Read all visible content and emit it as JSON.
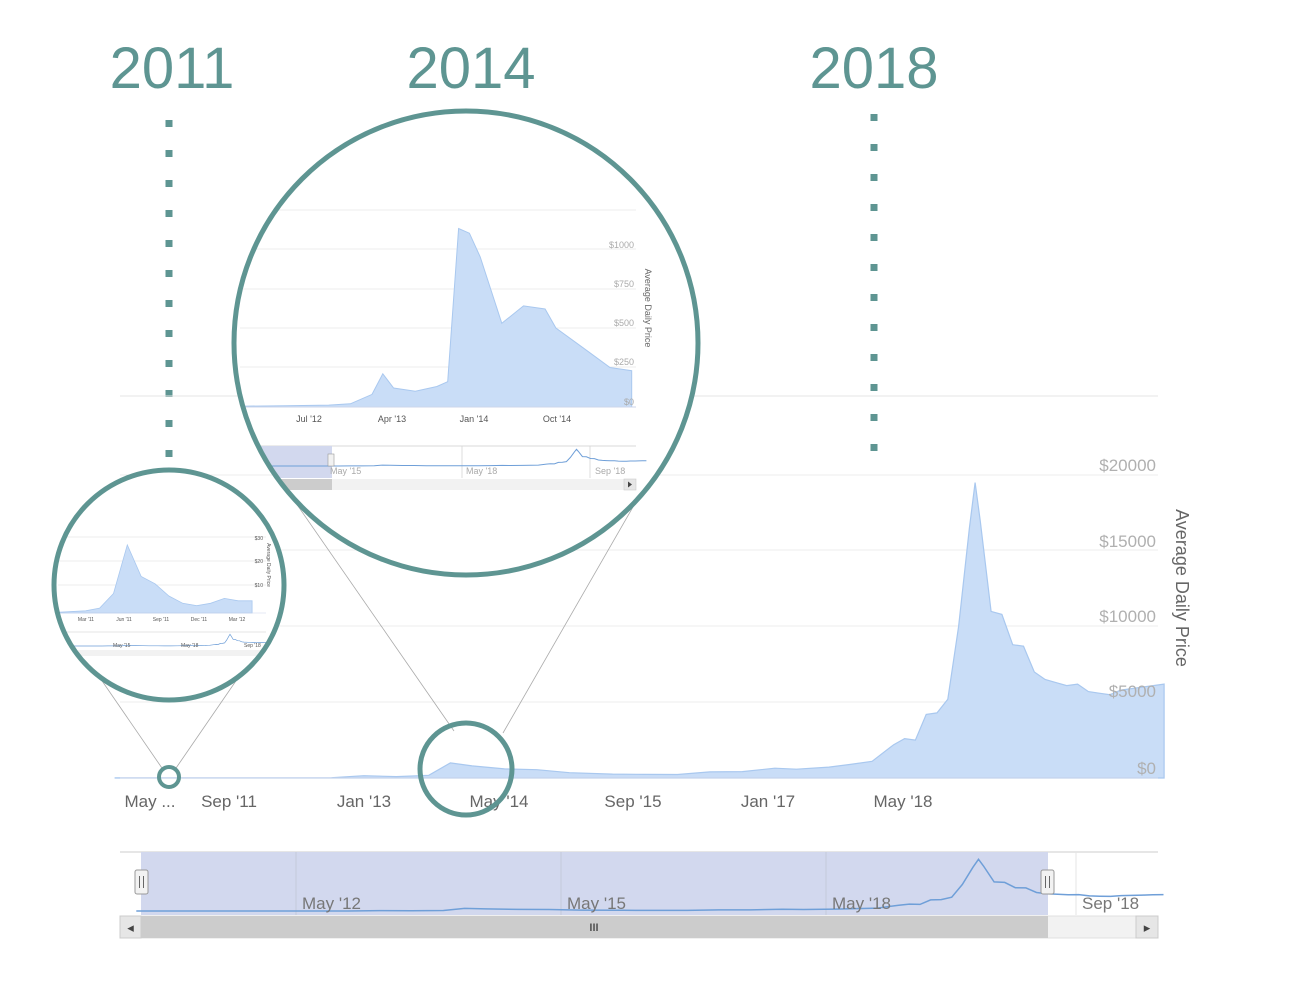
{
  "annotations": {
    "years": [
      "2011",
      "2014",
      "2018"
    ]
  },
  "colors": {
    "accent": "#5e9592",
    "area_fill": "#c9ddf7",
    "area_line": "#a9c8ef",
    "navigator_mask": "#d2d8ee"
  },
  "chart_data": [
    {
      "id": "main",
      "type": "area",
      "ylabel": "Average Daily Price",
      "xticks": [
        "May ...",
        "Sep '11",
        "Jan '13",
        "May '14",
        "Sep '15",
        "Jan '17",
        "May '18"
      ],
      "yticks": [
        "$0",
        "$5000",
        "$10000",
        "$15000",
        "$20000"
      ],
      "ylim": [
        0,
        20000
      ],
      "grid": true,
      "series": [
        {
          "x": [
            "2011-05",
            "2011-09",
            "2012-01",
            "2012-05",
            "2012-09",
            "2013-01",
            "2013-04",
            "2013-07",
            "2013-10",
            "2013-12",
            "2014-02",
            "2014-05",
            "2014-08",
            "2014-11",
            "2015-03",
            "2015-06",
            "2015-09",
            "2015-12",
            "2016-03",
            "2016-06",
            "2016-08",
            "2016-11",
            "2017-01",
            "2017-03",
            "2017-05",
            "2017-06",
            "2017-07",
            "2017-08",
            "2017-09",
            "2017-10",
            "2017-11",
            "2017-12",
            "2017-12-17",
            "2018-01",
            "2018-02",
            "2018-03",
            "2018-04",
            "2018-05",
            "2018-06",
            "2018-07",
            "2018-08",
            "2018-09",
            "2018-10",
            "2018-11",
            "2018-12",
            "2019-01",
            "2019-02",
            "2019-03",
            "2019-04",
            "2019-05",
            "2019-06"
          ],
          "y": [
            8,
            5,
            6,
            8,
            12,
            18,
            150,
            90,
            180,
            1000,
            800,
            600,
            550,
            350,
            260,
            240,
            230,
            400,
            420,
            650,
            580,
            720,
            900,
            1100,
            2200,
            2600,
            2500,
            4200,
            4300,
            5200,
            10000,
            16500,
            19500,
            17000,
            11000,
            10800,
            8800,
            8700,
            7000,
            6500,
            6300,
            6100,
            6200,
            5700,
            5600,
            5500,
            5800,
            5900,
            6000,
            6100,
            6200
          ]
        }
      ]
    },
    {
      "id": "zoom-2014",
      "type": "area",
      "ylabel": "Average Daily Price",
      "xticks": [
        "Jul '12",
        "Apr '13",
        "Jan '14",
        "Oct '14"
      ],
      "yticks": [
        "$0",
        "$250",
        "$500",
        "$750",
        "$1000"
      ],
      "ylim": [
        0,
        1000
      ],
      "navigator_ticks": [
        "May '15",
        "May '18",
        "Sep '18"
      ],
      "series": [
        {
          "x": [
            "2012-03",
            "2012-07",
            "2012-11",
            "2013-01",
            "2013-03",
            "2013-04",
            "2013-05",
            "2013-07",
            "2013-09",
            "2013-10",
            "2013-11",
            "2013-12",
            "2014-01",
            "2014-03",
            "2014-05",
            "2014-07",
            "2014-08",
            "2014-10",
            "2014-11",
            "2015-01",
            "2015-03"
          ],
          "y": [
            5,
            8,
            12,
            20,
            80,
            210,
            120,
            100,
            130,
            160,
            1130,
            1100,
            950,
            530,
            640,
            620,
            500,
            400,
            350,
            250,
            230
          ]
        }
      ]
    },
    {
      "id": "zoom-2011",
      "type": "area",
      "ylabel": "Average Daily Price",
      "xticks": [
        "Mar '11",
        "Jun '11",
        "Sep '11",
        "Dec '11",
        "Mar '12"
      ],
      "yticks": [
        "$0",
        "$10",
        "$20",
        "$30"
      ],
      "ylim": [
        0,
        30
      ],
      "navigator_ticks": [
        "May '15",
        "May '18",
        "Sep '18"
      ],
      "series": [
        {
          "x": [
            "2011-01",
            "2011-03",
            "2011-04",
            "2011-05",
            "2011-06",
            "2011-07",
            "2011-08",
            "2011-09",
            "2011-10",
            "2011-11",
            "2011-12",
            "2012-01",
            "2012-02",
            "2012-03"
          ],
          "y": [
            0.3,
            0.9,
            2,
            8,
            28,
            15,
            12,
            7,
            4,
            3,
            4,
            6,
            5,
            5
          ]
        }
      ]
    }
  ],
  "navigator": {
    "ticks": [
      "May '12",
      "May '15",
      "May '18",
      "Sep '18"
    ],
    "scrollbar_grip": "III",
    "left_arrow": "◂",
    "right_arrow": "▸"
  }
}
